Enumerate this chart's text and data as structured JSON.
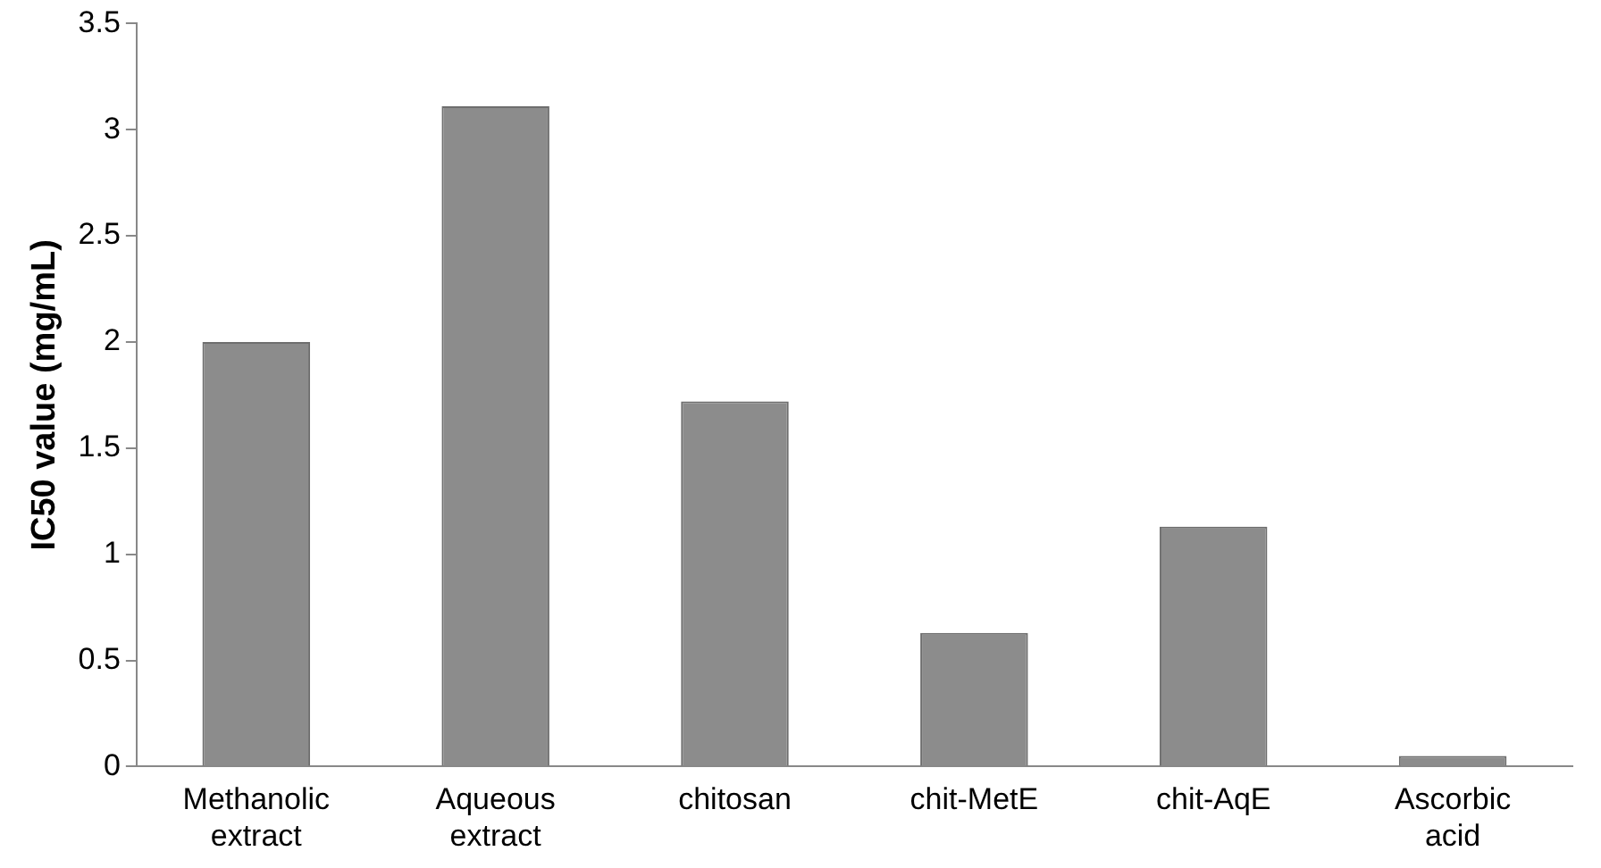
{
  "chart_data": {
    "type": "bar",
    "ylabel": "IC50 value (mg/mL)",
    "categories": [
      "Methanolic extract",
      "Aqueous extract",
      "chitosan",
      "chit-MetE",
      "chit-AqE",
      "Ascorbic acid"
    ],
    "values": [
      2.0,
      3.11,
      1.72,
      0.63,
      1.13,
      0.05
    ],
    "color": "#8c8c8c",
    "ylim": [
      0,
      3.5
    ],
    "yticks": [
      0,
      0.5,
      1,
      1.5,
      2,
      2.5,
      3,
      3.5
    ],
    "grid": false,
    "legend": false
  }
}
